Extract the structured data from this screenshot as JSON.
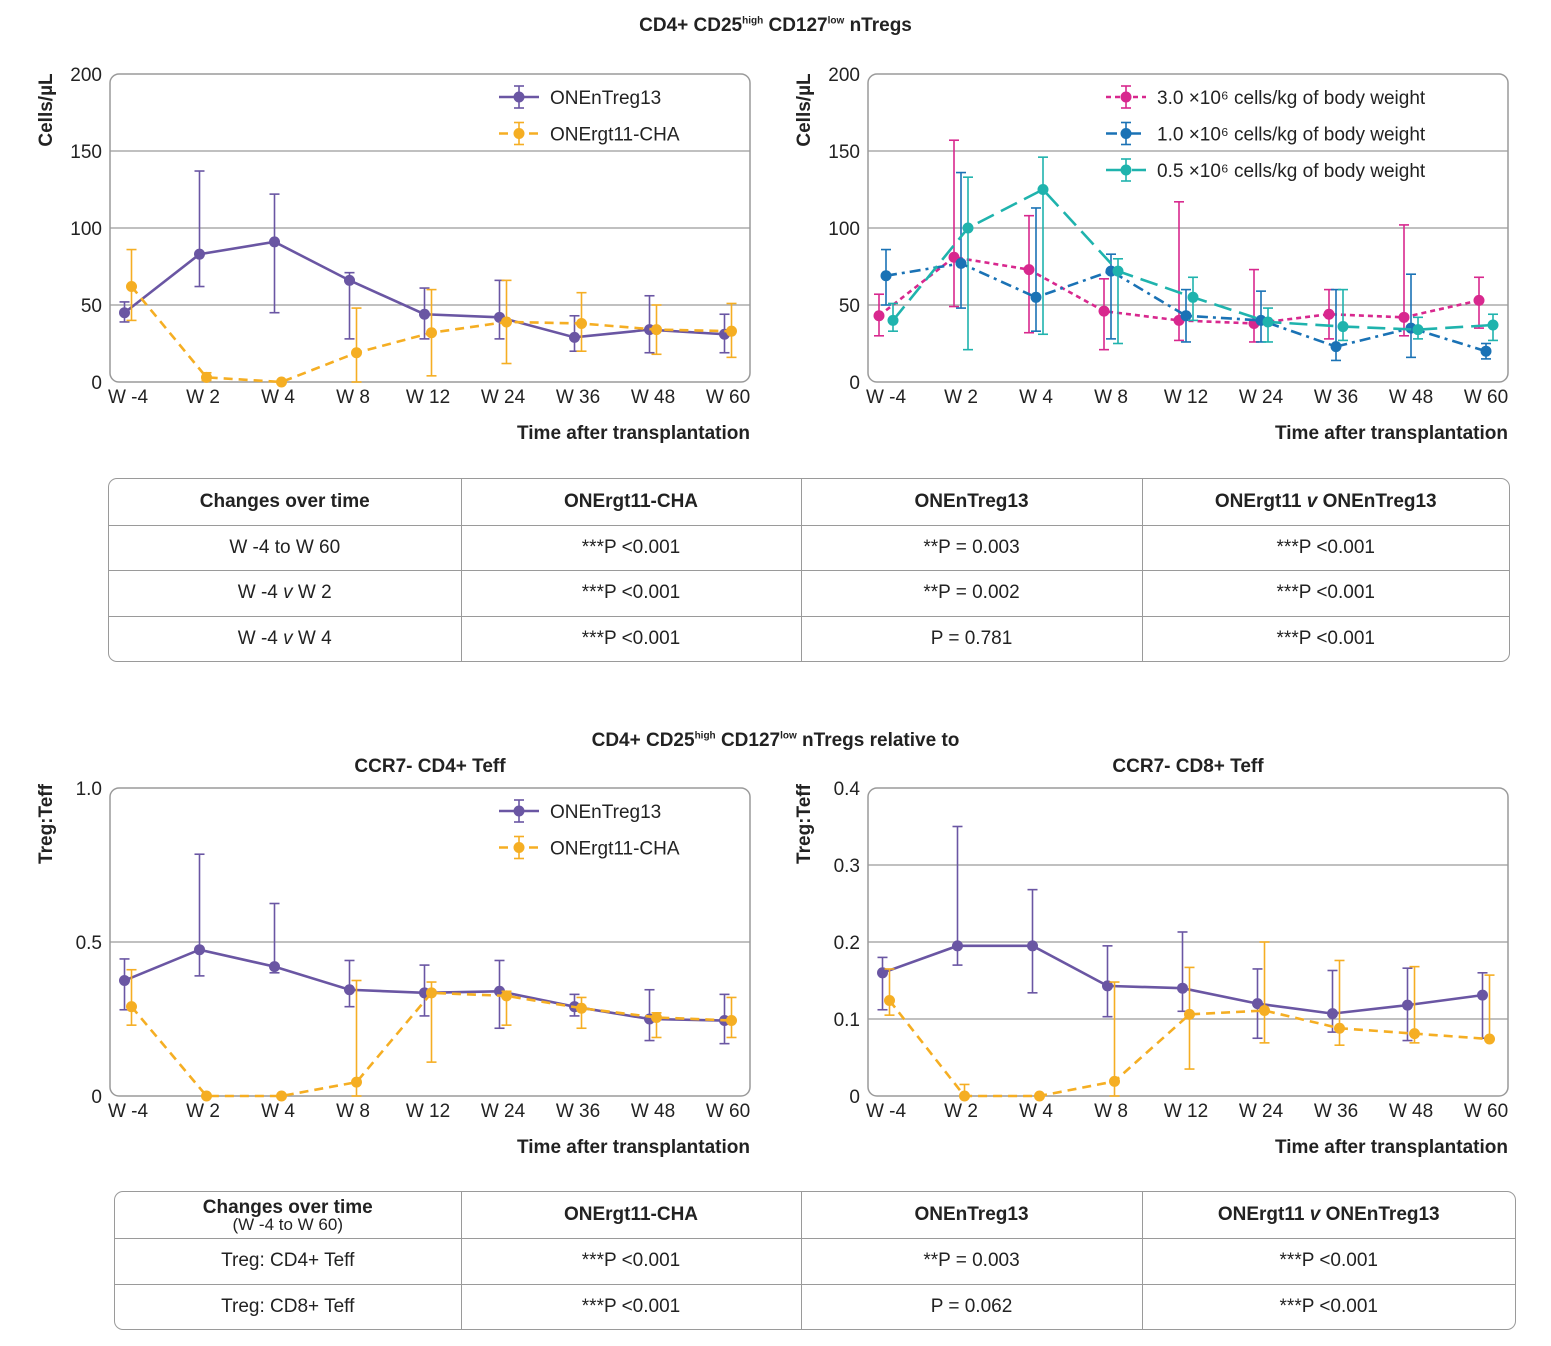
{
  "top_title": {
    "main": "CD4+ CD25",
    "sup1": "high",
    "mid": " CD127",
    "sup2": "low",
    "end": " nTregs"
  },
  "bottom_title": {
    "main": "CD4+ CD25",
    "sup1": "high",
    "mid": " CD127",
    "sup2": "low",
    "end": " nTregs relative to"
  },
  "colors": {
    "purple": "#6a56a3",
    "orange": "#f5ae23",
    "magenta": "#d8288e",
    "blue": "#1a72b5",
    "teal": "#1fb3ad"
  },
  "chart_data": [
    {
      "type": "line",
      "ylabel": "Cells/µL",
      "xlabel": "Time after transplantation",
      "ylim": [
        0,
        200
      ],
      "yticks": [
        0,
        50,
        100,
        150,
        200
      ],
      "categories": [
        "W -4",
        "W 2",
        "W 4",
        "W 8",
        "W 12",
        "W 24",
        "W 36",
        "W 48",
        "W 60"
      ],
      "legend_position": "top-right",
      "series": [
        {
          "name": "ONEnTreg13",
          "color": "#6a56a3",
          "dash": "solid",
          "values": [
            45,
            83,
            91,
            66,
            44,
            42,
            29,
            34,
            31
          ],
          "error_low": [
            39,
            62,
            45,
            28,
            28,
            28,
            20,
            19,
            19
          ],
          "error_high": [
            52,
            137,
            122,
            71,
            61,
            66,
            43,
            56,
            44
          ]
        },
        {
          "name": "ONErgt11-CHA",
          "color": "#f5ae23",
          "dash": "dashed",
          "values": [
            62,
            3,
            0,
            19,
            32,
            39,
            38,
            34,
            33
          ],
          "error_low": [
            40,
            1,
            0,
            0,
            4,
            12,
            20,
            18,
            16
          ],
          "error_high": [
            86,
            6,
            1,
            48,
            60,
            66,
            58,
            50,
            51
          ]
        }
      ]
    },
    {
      "type": "line",
      "ylabel": "Cells/µL",
      "xlabel": "Time after transplantation",
      "ylim": [
        0,
        200
      ],
      "yticks": [
        0,
        50,
        100,
        150,
        200
      ],
      "categories": [
        "W -4",
        "W 2",
        "W 4",
        "W 8",
        "W 12",
        "W 24",
        "W 36",
        "W 48",
        "W 60"
      ],
      "legend_position": "top-right",
      "series": [
        {
          "name": "3.0 ×10⁶ cells/kg of body weight",
          "color": "#d8288e",
          "dash": "dotted",
          "values": [
            43,
            81,
            73,
            46,
            40,
            38,
            44,
            42,
            53
          ],
          "error_low": [
            30,
            49,
            32,
            21,
            27,
            26,
            28,
            30,
            35
          ],
          "error_high": [
            57,
            157,
            108,
            67,
            117,
            73,
            60,
            102,
            68
          ]
        },
        {
          "name": "1.0 ×10⁶ cells/kg of body weight",
          "color": "#1a72b5",
          "dash": "dashdot",
          "values": [
            69,
            77,
            55,
            72,
            43,
            40,
            23,
            35,
            20
          ],
          "error_low": [
            50,
            48,
            33,
            28,
            26,
            26,
            14,
            16,
            15
          ],
          "error_high": [
            86,
            136,
            113,
            83,
            60,
            59,
            60,
            70,
            25
          ]
        },
        {
          "name": "0.5 ×10⁶ cells/kg of body weight",
          "color": "#1fb3ad",
          "dash": "longdash",
          "values": [
            40,
            100,
            125,
            72,
            55,
            39,
            36,
            34,
            37
          ],
          "error_low": [
            33,
            21,
            31,
            25,
            40,
            26,
            27,
            28,
            27
          ],
          "error_high": [
            51,
            133,
            146,
            80,
            68,
            48,
            60,
            42,
            44
          ]
        }
      ]
    },
    {
      "type": "line",
      "title": "CCR7- CD4+ Teff",
      "ylabel": "Treg:Teff",
      "xlabel": "Time after transplantation",
      "ylim": [
        0,
        1.0
      ],
      "yticks": [
        0,
        0.5,
        1.0
      ],
      "ytick_labels": [
        "0",
        "0.5",
        "1.0"
      ],
      "categories": [
        "W -4",
        "W 2",
        "W 4",
        "W 8",
        "W 12",
        "W 24",
        "W 36",
        "W 48",
        "W 60"
      ],
      "legend_position": "top-right",
      "series": [
        {
          "name": "ONEnTreg13",
          "color": "#6a56a3",
          "dash": "solid",
          "values": [
            0.375,
            0.475,
            0.42,
            0.345,
            0.335,
            0.34,
            0.29,
            0.25,
            0.245
          ],
          "error_low": [
            0.28,
            0.39,
            0.4,
            0.29,
            0.26,
            0.22,
            0.26,
            0.18,
            0.17
          ],
          "error_high": [
            0.445,
            0.785,
            0.625,
            0.44,
            0.425,
            0.44,
            0.33,
            0.345,
            0.33
          ]
        },
        {
          "name": "ONErgt11-CHA",
          "color": "#f5ae23",
          "dash": "dashed",
          "values": [
            0.29,
            0.0,
            0.0,
            0.045,
            0.335,
            0.325,
            0.285,
            0.255,
            0.245
          ],
          "error_low": [
            0.23,
            0.0,
            0.0,
            0.0,
            0.11,
            0.23,
            0.22,
            0.19,
            0.19
          ],
          "error_high": [
            0.41,
            0.0,
            0.0,
            0.375,
            0.37,
            0.34,
            0.32,
            0.27,
            0.32
          ]
        }
      ]
    },
    {
      "type": "line",
      "title": "CCR7- CD8+ Teff",
      "ylabel": "Treg:Teff",
      "xlabel": "Time after transplantation",
      "ylim": [
        0,
        0.4
      ],
      "yticks": [
        0,
        0.1,
        0.2,
        0.3,
        0.4
      ],
      "ytick_labels": [
        "0",
        "0.1",
        "0.2",
        "0.3",
        "0.4"
      ],
      "categories": [
        "W -4",
        "W 2",
        "W 4",
        "W 8",
        "W 12",
        "W 24",
        "W 36",
        "W 48",
        "W 60"
      ],
      "series": [
        {
          "name": "ONEnTreg13",
          "color": "#6a56a3",
          "dash": "solid",
          "values": [
            0.16,
            0.195,
            0.195,
            0.143,
            0.14,
            0.12,
            0.107,
            0.118,
            0.131
          ],
          "error_low": [
            0.112,
            0.17,
            0.134,
            0.103,
            0.11,
            0.075,
            0.083,
            0.072,
            0.075
          ],
          "error_high": [
            0.18,
            0.35,
            0.268,
            0.195,
            0.213,
            0.165,
            0.163,
            0.166,
            0.16
          ]
        },
        {
          "name": "ONErgt11-CHA",
          "color": "#f5ae23",
          "dash": "dashed",
          "values": [
            0.124,
            0.0,
            0.0,
            0.019,
            0.106,
            0.111,
            0.088,
            0.081,
            0.074
          ],
          "error_low": [
            0.105,
            0.0,
            0.0,
            0.0,
            0.035,
            0.069,
            0.066,
            0.069,
            0.074
          ],
          "error_high": [
            0.165,
            0.015,
            0.0,
            0.148,
            0.167,
            0.2,
            0.176,
            0.168,
            0.157
          ]
        }
      ]
    }
  ],
  "table1": {
    "headers": [
      "Changes over time",
      "ONErgt11-CHA",
      "ONEnTreg13",
      "ONErgt11 v ONEnTreg13"
    ],
    "rows": [
      [
        "W -4 to W 60",
        "***P <0.001",
        "**P = 0.003",
        "***P <0.001"
      ],
      [
        "W -4 v W 2",
        "***P <0.001",
        "**P = 0.002",
        "***P <0.001"
      ],
      [
        "W -4 v W 4",
        "***P <0.001",
        "P = 0.781",
        "***P <0.001"
      ]
    ]
  },
  "table2": {
    "headers": [
      "Changes over time",
      "ONErgt11-CHA",
      "ONEnTreg13",
      "ONErgt11 v ONEnTreg13"
    ],
    "header_sub": "(W -4 to W 60)",
    "rows": [
      [
        "Treg: CD4+ Teff",
        "***P <0.001",
        "**P = 0.003",
        "***P <0.001"
      ],
      [
        "Treg: CD8+ Teff",
        "***P <0.001",
        "P = 0.062",
        "***P <0.001"
      ]
    ]
  }
}
